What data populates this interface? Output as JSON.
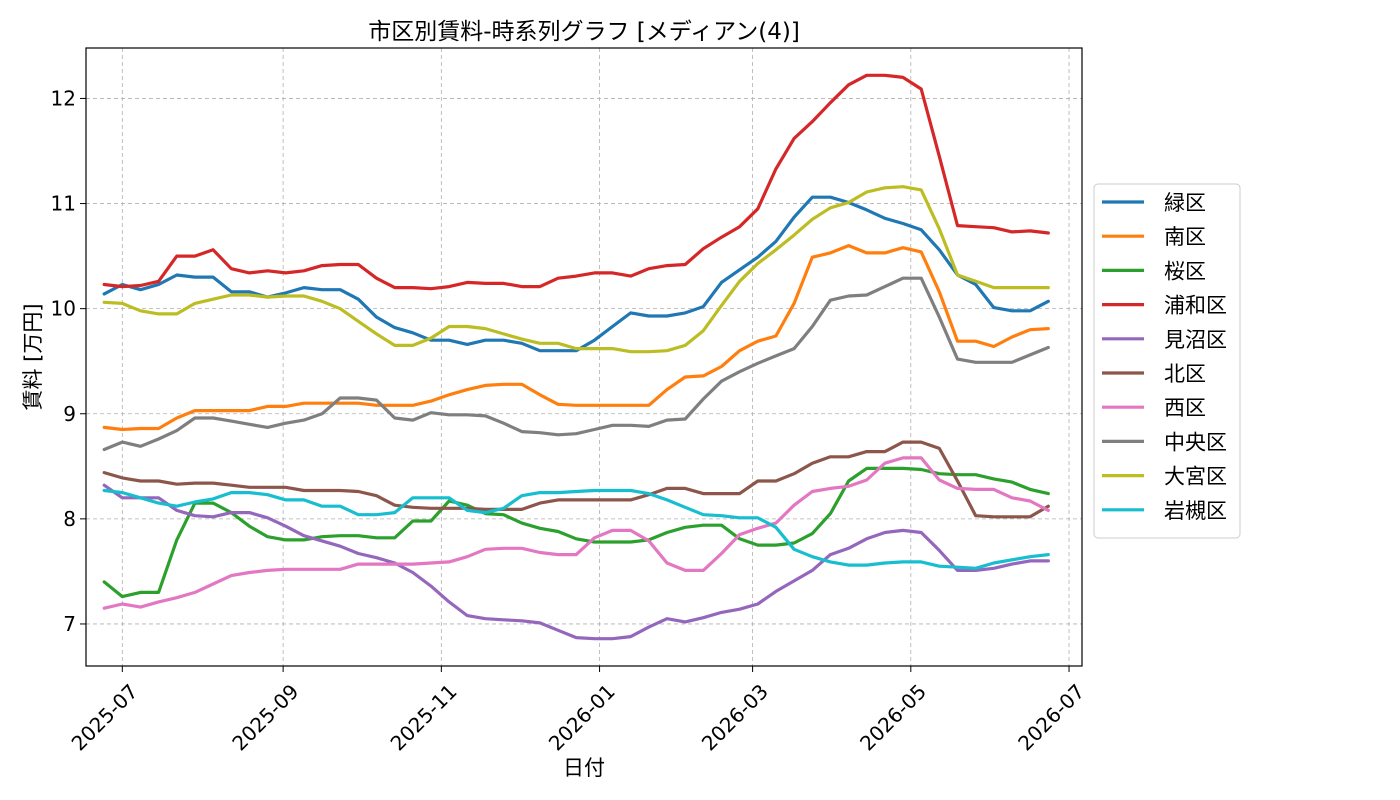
{
  "chart_data": {
    "type": "line",
    "title": "市区別賃料-時系列グラフ [メディアン(4)]",
    "xlabel": "日付",
    "ylabel": "賃料 [万円]",
    "ylim": [
      6.6,
      12.48
    ],
    "yticks": [
      7,
      8,
      9,
      10,
      11,
      12
    ],
    "xrange": [
      "2025-06-17",
      "2026-07-06"
    ],
    "xticks": [
      "2025-07",
      "2025-09",
      "2025-11",
      "2026-01",
      "2026-03",
      "2026-05",
      "2026-07"
    ],
    "grid": true,
    "legend_position": "right",
    "x": [
      "2025-06-24",
      "2025-07-01",
      "2025-07-08",
      "2025-07-15",
      "2025-07-22",
      "2025-07-29",
      "2025-08-05",
      "2025-08-12",
      "2025-08-19",
      "2025-08-26",
      "2025-09-02",
      "2025-09-09",
      "2025-09-16",
      "2025-09-23",
      "2025-09-30",
      "2025-10-07",
      "2025-10-14",
      "2025-10-21",
      "2025-10-28",
      "2025-11-04",
      "2025-11-11",
      "2025-11-18",
      "2025-11-25",
      "2025-12-02",
      "2025-12-09",
      "2025-12-16",
      "2025-12-23",
      "2025-12-30",
      "2026-01-06",
      "2026-01-13",
      "2026-01-20",
      "2026-01-27",
      "2026-02-03",
      "2026-02-10",
      "2026-02-17",
      "2026-02-24",
      "2026-03-03",
      "2026-03-10",
      "2026-03-17",
      "2026-03-24",
      "2026-03-31",
      "2026-04-07",
      "2026-04-14",
      "2026-04-21",
      "2026-04-28",
      "2026-05-05",
      "2026-05-12",
      "2026-05-19",
      "2026-05-26",
      "2026-06-02",
      "2026-06-09",
      "2026-06-16",
      "2026-06-23"
    ],
    "series": [
      {
        "name": "緑区",
        "color": "#1f77b4",
        "values": [
          10.14,
          10.23,
          10.18,
          10.23,
          10.32,
          10.3,
          10.3,
          10.16,
          10.16,
          10.11,
          10.15,
          10.2,
          10.18,
          10.18,
          10.09,
          9.92,
          9.82,
          9.77,
          9.7,
          9.7,
          9.66,
          9.7,
          9.7,
          9.67,
          9.6,
          9.6,
          9.6,
          9.7,
          9.83,
          9.96,
          9.93,
          9.93,
          9.96,
          10.02,
          10.25,
          10.37,
          10.49,
          10.64,
          10.87,
          11.06,
          11.06,
          11.01,
          10.94,
          10.86,
          10.81,
          10.75,
          10.56,
          10.32,
          10.23,
          10.01,
          9.98,
          9.98,
          10.07
        ]
      },
      {
        "name": "南区",
        "color": "#ff7f0e",
        "values": [
          8.87,
          8.85,
          8.86,
          8.86,
          8.96,
          9.03,
          9.03,
          9.03,
          9.03,
          9.07,
          9.07,
          9.1,
          9.1,
          9.1,
          9.1,
          9.08,
          9.08,
          9.08,
          9.12,
          9.18,
          9.23,
          9.27,
          9.28,
          9.28,
          9.18,
          9.09,
          9.08,
          9.08,
          9.08,
          9.08,
          9.08,
          9.23,
          9.35,
          9.36,
          9.45,
          9.6,
          9.69,
          9.74,
          10.05,
          10.49,
          10.53,
          10.6,
          10.53,
          10.53,
          10.58,
          10.54,
          10.16,
          9.69,
          9.69,
          9.64,
          9.73,
          9.8,
          9.81
        ]
      },
      {
        "name": "桜区",
        "color": "#2ca02c",
        "values": [
          7.4,
          7.26,
          7.3,
          7.3,
          7.8,
          8.15,
          8.15,
          8.06,
          7.93,
          7.83,
          7.8,
          7.8,
          7.83,
          7.84,
          7.84,
          7.82,
          7.82,
          7.98,
          7.98,
          8.17,
          8.13,
          8.05,
          8.04,
          7.96,
          7.91,
          7.88,
          7.81,
          7.78,
          7.78,
          7.78,
          7.8,
          7.87,
          7.92,
          7.94,
          7.94,
          7.81,
          7.75,
          7.75,
          7.77,
          7.86,
          8.05,
          8.36,
          8.48,
          8.48,
          8.48,
          8.47,
          8.43,
          8.42,
          8.42,
          8.38,
          8.35,
          8.28,
          8.24
        ]
      },
      {
        "name": "浦和区",
        "color": "#d62728",
        "values": [
          10.23,
          10.21,
          10.22,
          10.26,
          10.5,
          10.5,
          10.56,
          10.38,
          10.34,
          10.36,
          10.34,
          10.36,
          10.41,
          10.42,
          10.42,
          10.29,
          10.2,
          10.2,
          10.19,
          10.21,
          10.25,
          10.24,
          10.24,
          10.21,
          10.21,
          10.29,
          10.31,
          10.34,
          10.34,
          10.31,
          10.38,
          10.41,
          10.42,
          10.57,
          10.68,
          10.78,
          10.95,
          11.33,
          11.62,
          11.78,
          11.96,
          12.13,
          12.22,
          12.22,
          12.2,
          12.09,
          11.45,
          10.79,
          10.78,
          10.77,
          10.73,
          10.74,
          10.72
        ]
      },
      {
        "name": "見沼区",
        "color": "#9467bd",
        "values": [
          8.32,
          8.2,
          8.2,
          8.2,
          8.08,
          8.03,
          8.02,
          8.06,
          8.06,
          8.01,
          7.93,
          7.84,
          7.79,
          7.74,
          7.67,
          7.63,
          7.58,
          7.49,
          7.36,
          7.21,
          7.08,
          7.05,
          7.04,
          7.03,
          7.01,
          6.94,
          6.87,
          6.86,
          6.86,
          6.88,
          6.97,
          7.05,
          7.02,
          7.06,
          7.11,
          7.14,
          7.19,
          7.31,
          7.41,
          7.51,
          7.66,
          7.72,
          7.81,
          7.87,
          7.89,
          7.87,
          7.7,
          7.51,
          7.51,
          7.53,
          7.57,
          7.6,
          7.6
        ]
      },
      {
        "name": "北区",
        "color": "#8c564b",
        "values": [
          8.44,
          8.39,
          8.36,
          8.36,
          8.33,
          8.34,
          8.34,
          8.32,
          8.3,
          8.3,
          8.3,
          8.27,
          8.27,
          8.27,
          8.26,
          8.22,
          8.13,
          8.11,
          8.1,
          8.1,
          8.1,
          8.09,
          8.09,
          8.09,
          8.15,
          8.18,
          8.18,
          8.18,
          8.18,
          8.18,
          8.23,
          8.29,
          8.29,
          8.24,
          8.24,
          8.24,
          8.36,
          8.36,
          8.43,
          8.53,
          8.59,
          8.59,
          8.64,
          8.64,
          8.73,
          8.73,
          8.67,
          8.36,
          8.03,
          8.02,
          8.02,
          8.02,
          8.12
        ]
      },
      {
        "name": "西区",
        "color": "#e377c2",
        "values": [
          7.15,
          7.19,
          7.16,
          7.21,
          7.25,
          7.3,
          7.38,
          7.46,
          7.49,
          7.51,
          7.52,
          7.52,
          7.52,
          7.52,
          7.57,
          7.57,
          7.57,
          7.57,
          7.58,
          7.59,
          7.64,
          7.71,
          7.72,
          7.72,
          7.68,
          7.66,
          7.66,
          7.82,
          7.89,
          7.89,
          7.79,
          7.58,
          7.51,
          7.51,
          7.67,
          7.85,
          7.91,
          7.96,
          8.13,
          8.26,
          8.29,
          8.31,
          8.37,
          8.53,
          8.58,
          8.58,
          8.37,
          8.29,
          8.28,
          8.28,
          8.2,
          8.17,
          8.08
        ]
      },
      {
        "name": "中央区",
        "color": "#7f7f7f",
        "values": [
          8.66,
          8.73,
          8.69,
          8.76,
          8.84,
          8.96,
          8.96,
          8.93,
          8.9,
          8.87,
          8.91,
          8.94,
          9.0,
          9.15,
          9.15,
          9.13,
          8.96,
          8.94,
          9.01,
          8.99,
          8.99,
          8.98,
          8.91,
          8.83,
          8.82,
          8.8,
          8.81,
          8.85,
          8.89,
          8.89,
          8.88,
          8.94,
          8.95,
          9.14,
          9.31,
          9.4,
          9.48,
          9.55,
          9.62,
          9.83,
          10.08,
          10.12,
          10.13,
          10.21,
          10.29,
          10.29,
          9.92,
          9.52,
          9.49,
          9.49,
          9.49,
          9.56,
          9.63
        ]
      },
      {
        "name": "大宮区",
        "color": "#bcbd22",
        "values": [
          10.06,
          10.05,
          9.98,
          9.95,
          9.95,
          10.05,
          10.09,
          10.13,
          10.13,
          10.11,
          10.12,
          10.12,
          10.07,
          10.0,
          9.88,
          9.76,
          9.65,
          9.65,
          9.72,
          9.83,
          9.83,
          9.81,
          9.76,
          9.71,
          9.67,
          9.67,
          9.62,
          9.62,
          9.62,
          9.59,
          9.59,
          9.6,
          9.65,
          9.79,
          10.03,
          10.26,
          10.43,
          10.56,
          10.7,
          10.85,
          10.96,
          11.01,
          11.11,
          11.15,
          11.16,
          11.13,
          10.76,
          10.32,
          10.26,
          10.2,
          10.2,
          10.2,
          10.2
        ]
      },
      {
        "name": "岩槻区",
        "color": "#17becf",
        "values": [
          8.27,
          8.25,
          8.2,
          8.15,
          8.12,
          8.16,
          8.19,
          8.25,
          8.25,
          8.23,
          8.18,
          8.18,
          8.12,
          8.12,
          8.04,
          8.04,
          8.06,
          8.2,
          8.2,
          8.2,
          8.08,
          8.06,
          8.1,
          8.22,
          8.25,
          8.25,
          8.26,
          8.27,
          8.27,
          8.27,
          8.24,
          8.18,
          8.11,
          8.04,
          8.03,
          8.01,
          8.01,
          7.92,
          7.71,
          7.64,
          7.59,
          7.56,
          7.56,
          7.58,
          7.59,
          7.59,
          7.55,
          7.54,
          7.53,
          7.58,
          7.61,
          7.64,
          7.66
        ]
      }
    ]
  }
}
